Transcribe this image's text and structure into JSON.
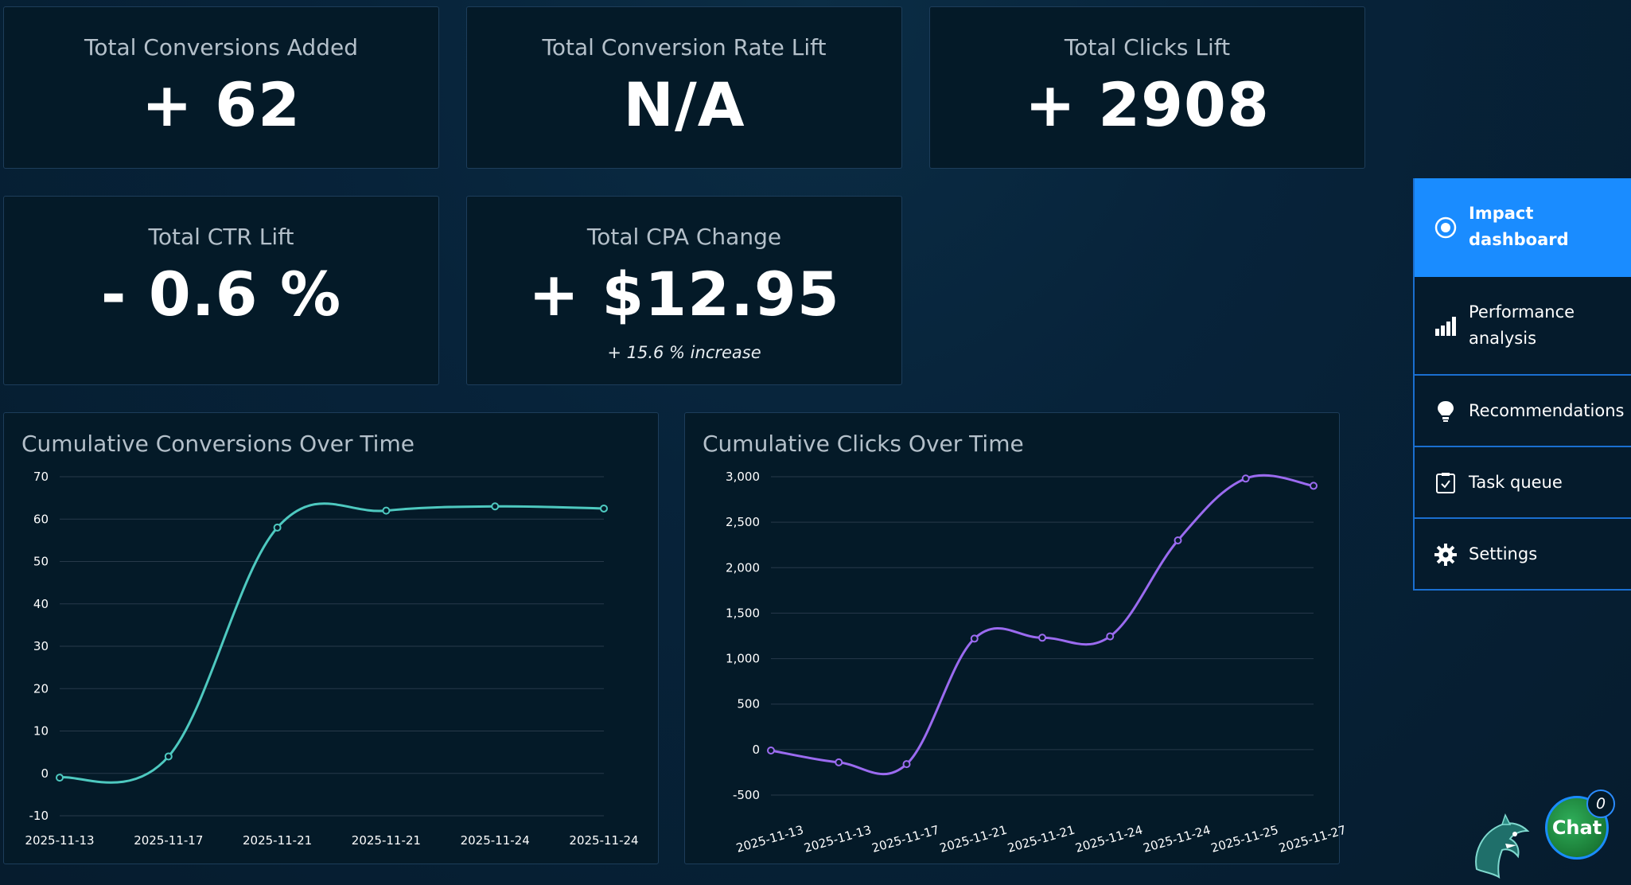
{
  "kpis": {
    "conversions_added": {
      "label": "Total Conversions Added",
      "value": "+ 62"
    },
    "conversion_rate_lift": {
      "label": "Total Conversion Rate Lift",
      "value": "N/A"
    },
    "clicks_lift": {
      "label": "Total Clicks Lift",
      "value": "+ 2908"
    },
    "ctr_lift": {
      "label": "Total CTR Lift",
      "value": "- 0.6 %"
    },
    "cpa_change": {
      "label": "Total CPA Change",
      "value": "+ $12.95",
      "sub": "+ 15.6 % increase"
    }
  },
  "nav": {
    "items": [
      {
        "label": "Impact dashboard",
        "icon": "target-icon",
        "active": true
      },
      {
        "label": "Performance analysis",
        "icon": "bar-chart-icon",
        "active": false
      },
      {
        "label": "Recommendations",
        "icon": "lightbulb-icon",
        "active": false
      },
      {
        "label": "Task queue",
        "icon": "checklist-icon",
        "active": false
      },
      {
        "label": "Settings",
        "icon": "gear-icon",
        "active": false
      }
    ]
  },
  "chat": {
    "label": "Chat",
    "badge": "0"
  },
  "colors": {
    "conversions_line": "#4ec9c0",
    "clicks_line": "#9b6bf0",
    "active_nav": "#1a8cff"
  },
  "chart_data": [
    {
      "type": "line",
      "title": "Cumulative Conversions Over Time",
      "x": [
        "2025-11-13",
        "2025-11-17",
        "2025-11-21",
        "2025-11-21",
        "2025-11-24",
        "2025-11-24"
      ],
      "series": [
        {
          "values": [
            -1,
            4,
            58,
            62,
            63,
            62.5
          ]
        }
      ],
      "yticks": [
        70,
        60,
        50,
        40,
        30,
        20,
        10,
        0,
        -10
      ],
      "ylim": [
        -10,
        70
      ],
      "grid": true
    },
    {
      "type": "line",
      "title": "Cumulative Clicks Over Time",
      "x": [
        "2025-11-13",
        "2025-11-13",
        "2025-11-17",
        "2025-11-21",
        "2025-11-21",
        "2025-11-24",
        "2025-11-24",
        "2025-11-25",
        "2025-11-27"
      ],
      "series": [
        {
          "values": [
            -10,
            -140,
            -160,
            1220,
            1230,
            1245,
            2300,
            2980,
            2900
          ]
        }
      ],
      "yticks": [
        "3,000",
        "2,500",
        "2,000",
        "1,500",
        "1,000",
        "500",
        "0",
        "-500"
      ],
      "ytick_values": [
        3000,
        2500,
        2000,
        1500,
        1000,
        500,
        0,
        -500
      ],
      "ylim": [
        -500,
        3000
      ],
      "grid": true
    }
  ]
}
